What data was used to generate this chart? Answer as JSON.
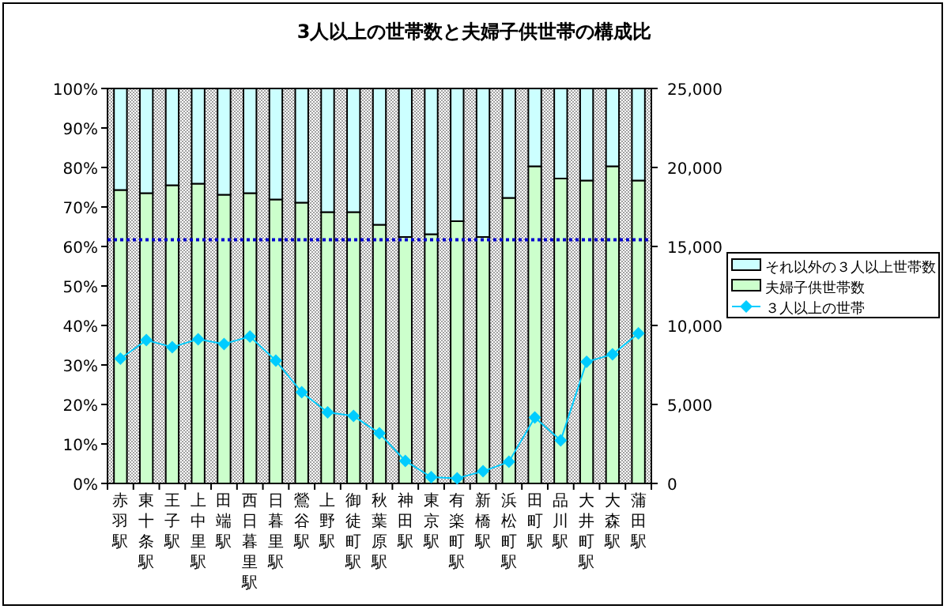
{
  "chart_data": {
    "type": "bar",
    "title": "3人以上の世帯数と夫婦子供世帯の構成比",
    "stacked": true,
    "categories": [
      "赤羽駅",
      "東十条駅",
      "王子駅",
      "上中里駅",
      "田端駅",
      "西日暮里駅",
      "日暮里駅",
      "鶯谷駅",
      "上野駅",
      "御徒町駅",
      "秋葉原駅",
      "神田駅",
      "東京駅",
      "有楽町駅",
      "新橋駅",
      "浜松町駅",
      "田町駅",
      "品川駅",
      "大井町駅",
      "大森駅",
      "蒲田駅"
    ],
    "series": [
      {
        "name": "夫婦子供世帯数",
        "type": "bar",
        "color": "#ccffcc",
        "values": [
          74.3,
          73.5,
          75.5,
          75.9,
          73.1,
          73.5,
          71.9,
          71.1,
          68.7,
          68.7,
          65.5,
          62.4,
          63.1,
          66.4,
          62.4,
          72.3,
          80.3,
          77.2,
          76.7,
          80.3,
          76.7
        ]
      },
      {
        "name": "それ以外の３人以上世帯数",
        "type": "bar",
        "color": "#ccffff",
        "values": [
          25.7,
          26.5,
          24.5,
          24.1,
          26.9,
          26.5,
          28.1,
          28.9,
          31.3,
          31.3,
          34.5,
          37.6,
          36.9,
          33.6,
          37.6,
          27.7,
          19.7,
          22.8,
          23.3,
          19.7,
          23.3
        ]
      },
      {
        "name": "３人以上の世帯",
        "type": "line",
        "axis": "y2",
        "color": "#00ccff",
        "marker": "diamond",
        "values": [
          7900,
          9070,
          8630,
          9130,
          8830,
          9300,
          7770,
          5770,
          4500,
          4270,
          3170,
          1430,
          400,
          330,
          770,
          1370,
          4170,
          2730,
          7700,
          8170,
          9500
        ]
      }
    ],
    "ylim": [
      0,
      100
    ],
    "yticks": [
      {
        "value": 0,
        "label": "0%"
      },
      {
        "value": 10,
        "label": "10%"
      },
      {
        "value": 20,
        "label": "20%"
      },
      {
        "value": 30,
        "label": "30%"
      },
      {
        "value": 40,
        "label": "40%"
      },
      {
        "value": 50,
        "label": "50%"
      },
      {
        "value": 60,
        "label": "60%"
      },
      {
        "value": 70,
        "label": "70%"
      },
      {
        "value": 80,
        "label": "80%"
      },
      {
        "value": 90,
        "label": "90%"
      },
      {
        "value": 100,
        "label": "100%"
      }
    ],
    "y2lim": [
      0,
      25000
    ],
    "y2ticks": [
      {
        "value": 0,
        "label": "0"
      },
      {
        "value": 5000,
        "label": "5,000"
      },
      {
        "value": 10000,
        "label": "10,000"
      },
      {
        "value": 15000,
        "label": "15,000"
      },
      {
        "value": 20000,
        "label": "20,000"
      },
      {
        "value": 25000,
        "label": "25,000"
      }
    ],
    "ref_lines": [
      {
        "axis": "y",
        "value": 61.7,
        "color": "#0000cc",
        "line_style": "dotted"
      }
    ],
    "legend": "right",
    "grid": false
  }
}
